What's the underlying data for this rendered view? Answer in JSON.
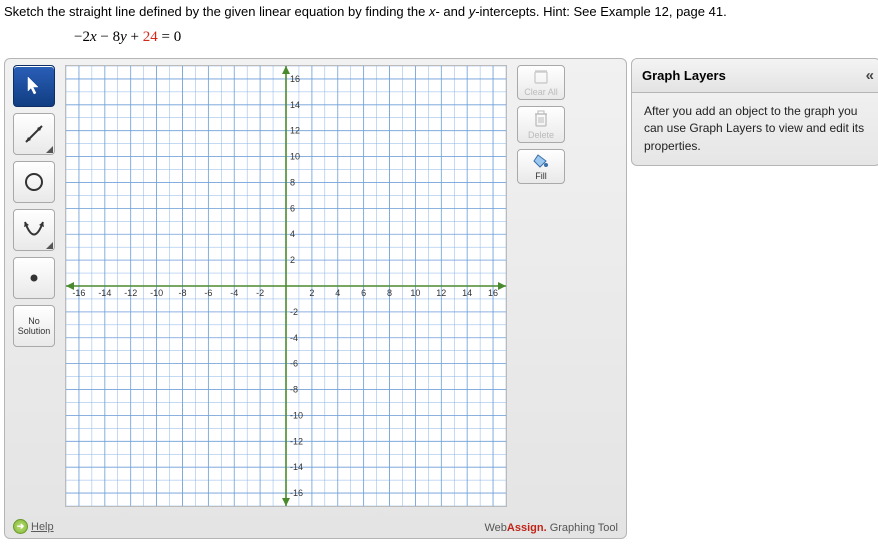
{
  "question": {
    "text": "Sketch the straight line defined by the given linear equation by finding the ",
    "var1": "x",
    "mid1": "- and ",
    "var2": "y",
    "tail": "-intercepts. Hint: See Example 12, page 41."
  },
  "equation": {
    "t1": "−2",
    "v1": "x",
    "t2": " − 8",
    "v2": "y",
    "t3": " + ",
    "t4": "24",
    "t5": " = 0"
  },
  "toolbox": {
    "pointer": "pointer-tool",
    "line": "line-tool",
    "circle": "circle-tool",
    "parabola": "parabola-tool",
    "point": "point-tool",
    "no_solution_l1": "No",
    "no_solution_l2": "Solution"
  },
  "side": {
    "clear_all": "Clear All",
    "delete": "Delete",
    "fill": "Fill"
  },
  "help": {
    "label": "Help"
  },
  "attribution": {
    "prefix": "Web",
    "bold": "Assign.",
    "suffix": " Graphing Tool"
  },
  "layers": {
    "title": "Graph Layers",
    "body": "After you add an object to the graph you can use Graph Layers to view and edit its properties."
  },
  "grid": {
    "min": -17,
    "max": 17,
    "step": 1,
    "label_step": 2,
    "axis_color": "#4a8a2f",
    "grid_color": "#8ab4e6",
    "grid_major_color": "#6f9fd8",
    "label_color": "#333333",
    "label_fontsize": 9
  }
}
